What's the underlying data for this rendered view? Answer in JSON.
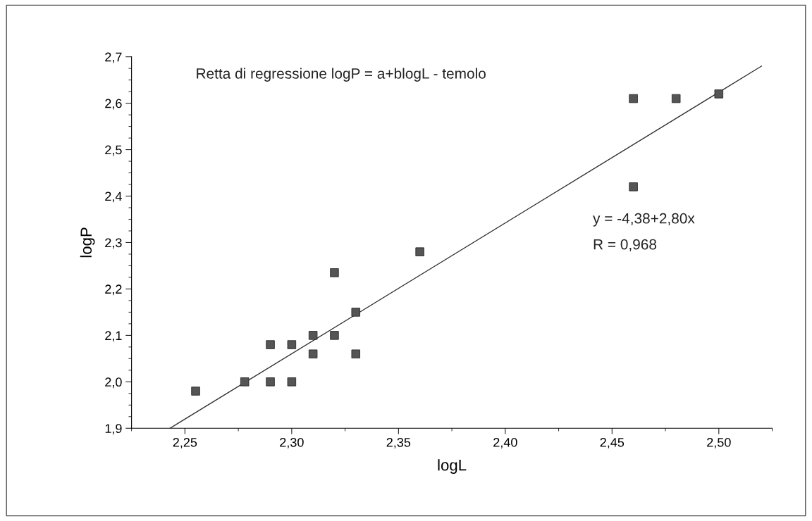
{
  "chart_data": {
    "type": "scatter",
    "title": "Retta di regressione logP = a+blogL - temolo",
    "xlabel": "logL",
    "ylabel": "logP",
    "series": [
      {
        "color": "#555555",
        "marker": "square",
        "x": [
          2.255,
          2.278,
          2.29,
          2.29,
          2.3,
          2.3,
          2.31,
          2.31,
          2.32,
          2.32,
          2.33,
          2.33,
          2.36,
          2.46,
          2.48,
          2.5,
          2.46
        ],
        "values": [
          1.98,
          2.0,
          2.0,
          2.08,
          2.0,
          2.08,
          2.1,
          2.06,
          2.235,
          2.1,
          2.15,
          2.06,
          2.28,
          2.61,
          2.61,
          2.62,
          2.42
        ]
      },
      {
        "type": "line",
        "color": "#333333",
        "marker": "none",
        "line_style": "solid",
        "x": [
          2.243,
          2.52
        ],
        "values": [
          1.9,
          2.68
        ]
      }
    ],
    "annotations": [
      "y = -4,38+2,80x",
      "R = 0,968"
    ],
    "xlim": [
      2.225,
      2.525
    ],
    "xticks": [
      {
        "value": 2.25,
        "label": "2,25"
      },
      {
        "value": 2.3,
        "label": "2,30"
      },
      {
        "value": 2.35,
        "label": "2,35"
      },
      {
        "value": 2.4,
        "label": "2,40"
      },
      {
        "value": 2.45,
        "label": "2,45"
      },
      {
        "value": 2.5,
        "label": "2,50"
      }
    ],
    "ylim": [
      1.9,
      2.7
    ],
    "yticks": [
      {
        "value": 1.9,
        "label": "1,9"
      },
      {
        "value": 2.0,
        "label": "2,0"
      },
      {
        "value": 2.1,
        "label": "2,1"
      },
      {
        "value": 2.2,
        "label": "2,2"
      },
      {
        "value": 2.3,
        "label": "2,3"
      },
      {
        "value": 2.4,
        "label": "2,4"
      },
      {
        "value": 2.5,
        "label": "2,5"
      },
      {
        "value": 2.6,
        "label": "2,6"
      },
      {
        "value": 2.7,
        "label": "2,7"
      }
    ],
    "grid": false,
    "legend": false
  }
}
